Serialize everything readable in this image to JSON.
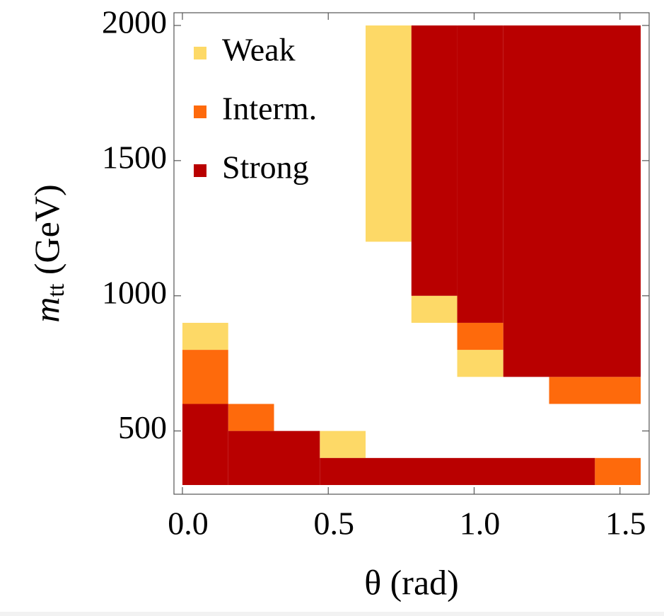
{
  "chart_data": {
    "type": "region",
    "xlabel": "θ (rad)",
    "ylabel": {
      "main": "m",
      "sub": "tt",
      "rest": " (GeV)"
    },
    "xlim": [
      -0.029,
      1.6
    ],
    "ylim": [
      266,
      2047
    ],
    "xticks": [
      {
        "value": 0,
        "label": "0.0"
      },
      0.5,
      {
        "value": 1,
        "label": "1.0"
      },
      1.5
    ],
    "yticks": [
      500,
      1000,
      1500,
      2000
    ],
    "legend": "upper left",
    "series": [
      {
        "name": "Weak",
        "color": "#fdd967",
        "cells": [
          {
            "x": [
              0,
              0.157
            ],
            "y": [
              800,
              900
            ]
          },
          {
            "x": [
              0.471,
              0.628
            ],
            "y": [
              400,
              500
            ]
          },
          {
            "x": [
              0.628,
              0.785
            ],
            "y": [
              1200,
              2000
            ]
          },
          {
            "x": [
              0.785,
              0.942
            ],
            "y": [
              900,
              1000
            ]
          },
          {
            "x": [
              0.942,
              1.1
            ],
            "y": [
              700,
              800
            ]
          }
        ]
      },
      {
        "name": "Interm.",
        "color": "#fe6a0c",
        "cells": [
          {
            "x": [
              0,
              0.157
            ],
            "y": [
              600,
              800
            ]
          },
          {
            "x": [
              0.157,
              0.314
            ],
            "y": [
              500,
              600
            ]
          },
          {
            "x": [
              0.942,
              1.1
            ],
            "y": [
              800,
              900
            ]
          },
          {
            "x": [
              1.257,
              1.571
            ],
            "y": [
              600,
              700
            ]
          },
          {
            "x": [
              1.414,
              1.571
            ],
            "y": [
              300,
              400
            ]
          }
        ]
      },
      {
        "name": "Strong",
        "color": "#b90000",
        "cells": [
          {
            "x": [
              0,
              0.157
            ],
            "y": [
              300,
              600
            ]
          },
          {
            "x": [
              0.157,
              0.471
            ],
            "y": [
              300,
              500
            ]
          },
          {
            "x": [
              0.471,
              1.414
            ],
            "y": [
              300,
              400
            ]
          },
          {
            "x": [
              0.785,
              0.942
            ],
            "y": [
              1000,
              2000
            ]
          },
          {
            "x": [
              0.942,
              1.1
            ],
            "y": [
              900,
              2000
            ]
          },
          {
            "x": [
              1.1,
              1.571
            ],
            "y": [
              700,
              2000
            ]
          }
        ]
      }
    ]
  }
}
